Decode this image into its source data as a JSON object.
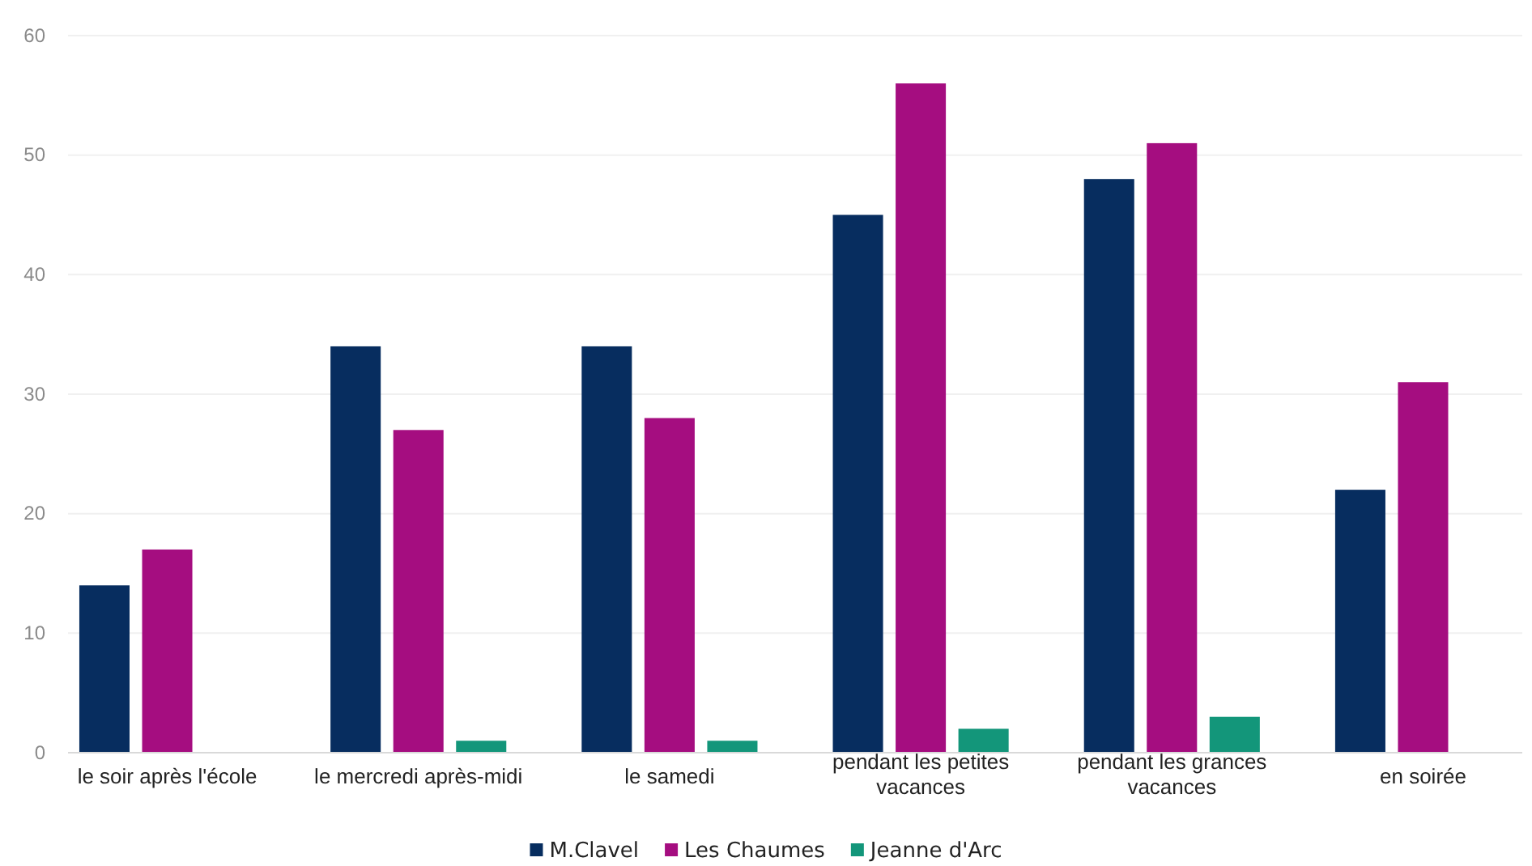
{
  "chart_data": {
    "type": "bar",
    "categories": [
      "le soir après l'école",
      "le mercredi après-midi",
      "le samedi",
      "pendant les petites vacances",
      "pendant les grances vacances",
      "en soirée"
    ],
    "series": [
      {
        "name": "M.Clavel",
        "color": "#072d5f",
        "values": [
          14,
          34,
          34,
          45,
          48,
          22
        ]
      },
      {
        "name": "Les Chaumes",
        "color": "#a50d80",
        "values": [
          17,
          27,
          28,
          56,
          51,
          31
        ]
      },
      {
        "name": "Jeanne d'Arc",
        "color": "#13967a",
        "values": [
          0,
          1,
          1,
          2,
          3,
          0
        ]
      }
    ],
    "ylim": [
      0,
      60
    ],
    "yticks": [
      0,
      10,
      20,
      30,
      40,
      50,
      60
    ],
    "grid": "y",
    "legend": "bottom"
  }
}
